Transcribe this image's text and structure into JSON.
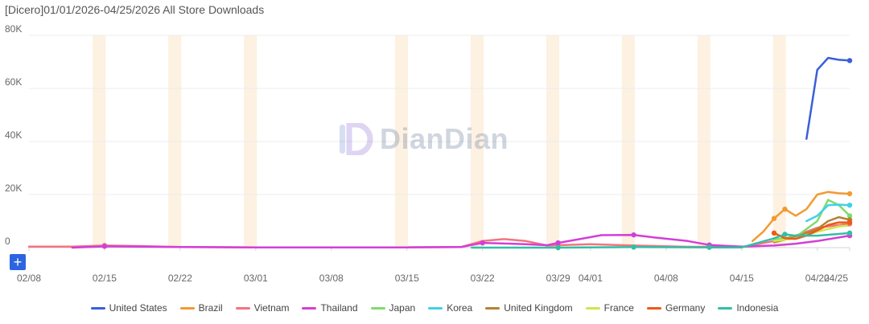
{
  "chart_data": {
    "type": "line",
    "title": "[Dicero]01/01/2026-04/25/2026 All Store Downloads",
    "y_ticks": [
      "0",
      "20K",
      "40K",
      "60K",
      "80K"
    ],
    "ylim": [
      0,
      80000
    ],
    "xlim": [
      "2026-02-08",
      "2026-04-25"
    ],
    "x_ticks": [
      {
        "date": "2026-02-08",
        "label": "02/08"
      },
      {
        "date": "2026-02-15",
        "label": "02/15"
      },
      {
        "date": "2026-02-22",
        "label": "02/22"
      },
      {
        "date": "2026-03-01",
        "label": "03/01"
      },
      {
        "date": "2026-03-08",
        "label": "03/08"
      },
      {
        "date": "2026-03-15",
        "label": "03/15"
      },
      {
        "date": "2026-03-22",
        "label": "03/22"
      },
      {
        "date": "2026-03-29",
        "label": "03/29"
      },
      {
        "date": "2026-04-01",
        "label": "04/01"
      },
      {
        "date": "2026-04-08",
        "label": "04/08"
      },
      {
        "date": "2026-04-15",
        "label": "04/15"
      },
      {
        "date": "2026-04-22",
        "label": "04/22"
      },
      {
        "date": "2026-04-25",
        "label": "04/25"
      }
    ],
    "weekend_bands": [
      {
        "start": "2026-02-14",
        "end": "2026-02-15"
      },
      {
        "start": "2026-02-21",
        "end": "2026-02-22"
      },
      {
        "start": "2026-02-28",
        "end": "2026-03-01"
      },
      {
        "start": "2026-03-14",
        "end": "2026-03-15"
      },
      {
        "start": "2026-03-21",
        "end": "2026-03-22"
      },
      {
        "start": "2026-03-28",
        "end": "2026-03-29"
      },
      {
        "start": "2026-04-04",
        "end": "2026-04-05"
      },
      {
        "start": "2026-04-11",
        "end": "2026-04-12"
      },
      {
        "start": "2026-04-18",
        "end": "2026-04-19"
      }
    ],
    "legend_position": "bottom",
    "grid": true,
    "series": [
      {
        "name": "United States",
        "color": "#3a5fd9",
        "points": [
          [
            "2026-04-21",
            41000
          ],
          [
            "2026-04-22",
            67000
          ],
          [
            "2026-04-23",
            71500
          ],
          [
            "2026-04-24",
            70800
          ],
          [
            "2026-04-25",
            70500
          ]
        ],
        "markers": [
          "2026-04-25"
        ]
      },
      {
        "name": "Brazil",
        "color": "#f39a31",
        "points": [
          [
            "2026-04-16",
            2500
          ],
          [
            "2026-04-17",
            6000
          ],
          [
            "2026-04-18",
            11000
          ],
          [
            "2026-04-19",
            14500
          ],
          [
            "2026-04-20",
            12000
          ],
          [
            "2026-04-21",
            14500
          ],
          [
            "2026-04-22",
            20000
          ],
          [
            "2026-04-23",
            21000
          ],
          [
            "2026-04-24",
            20500
          ],
          [
            "2026-04-25",
            20300
          ]
        ],
        "markers": [
          "2026-04-18",
          "2026-04-19",
          "2026-04-25"
        ]
      },
      {
        "name": "Vietnam",
        "color": "#f3747f",
        "points": [
          [
            "2026-02-08",
            400
          ],
          [
            "2026-02-12",
            400
          ],
          [
            "2026-02-15",
            800
          ],
          [
            "2026-02-18",
            600
          ],
          [
            "2026-02-22",
            200
          ],
          [
            "2026-03-01",
            100
          ],
          [
            "2026-03-15",
            100
          ],
          [
            "2026-03-20",
            200
          ],
          [
            "2026-03-22",
            2500
          ],
          [
            "2026-03-24",
            3200
          ],
          [
            "2026-03-26",
            2500
          ],
          [
            "2026-03-28",
            800
          ],
          [
            "2026-04-01",
            1300
          ],
          [
            "2026-04-05",
            800
          ],
          [
            "2026-04-10",
            300
          ],
          [
            "2026-04-15",
            200
          ],
          [
            "2026-04-18",
            2500
          ],
          [
            "2026-04-20",
            4500
          ],
          [
            "2026-04-22",
            7500
          ],
          [
            "2026-04-25",
            9000
          ]
        ],
        "markers": [
          "2026-02-15",
          "2026-04-25"
        ]
      },
      {
        "name": "Thailand",
        "color": "#d33fd6",
        "points": [
          [
            "2026-02-12",
            0
          ],
          [
            "2026-02-15",
            500
          ],
          [
            "2026-02-22",
            200
          ],
          [
            "2026-03-01",
            100
          ],
          [
            "2026-03-15",
            100
          ],
          [
            "2026-03-20",
            200
          ],
          [
            "2026-03-22",
            1800
          ],
          [
            "2026-03-26",
            1300
          ],
          [
            "2026-03-28",
            900
          ],
          [
            "2026-03-29",
            1800
          ],
          [
            "2026-03-31",
            3200
          ],
          [
            "2026-04-02",
            4700
          ],
          [
            "2026-04-05",
            4800
          ],
          [
            "2026-04-07",
            3800
          ],
          [
            "2026-04-10",
            2500
          ],
          [
            "2026-04-12",
            1000
          ],
          [
            "2026-04-15",
            400
          ],
          [
            "2026-04-18",
            800
          ],
          [
            "2026-04-20",
            1500
          ],
          [
            "2026-04-22",
            2500
          ],
          [
            "2026-04-25",
            4500
          ]
        ],
        "markers": [
          "2026-02-15",
          "2026-03-22",
          "2026-03-29",
          "2026-04-05",
          "2026-04-12",
          "2026-04-25"
        ]
      },
      {
        "name": "Japan",
        "color": "#7fdc6c",
        "points": [
          [
            "2026-04-18",
            3000
          ],
          [
            "2026-04-20",
            4000
          ],
          [
            "2026-04-22",
            10000
          ],
          [
            "2026-04-23",
            18000
          ],
          [
            "2026-04-24",
            16000
          ],
          [
            "2026-04-25",
            12000
          ]
        ],
        "markers": [
          "2026-04-25"
        ]
      },
      {
        "name": "Korea",
        "color": "#41d1e5",
        "points": [
          [
            "2026-04-21",
            10000
          ],
          [
            "2026-04-22",
            12000
          ],
          [
            "2026-04-23",
            16000
          ],
          [
            "2026-04-24",
            16200
          ],
          [
            "2026-04-25",
            16000
          ]
        ],
        "markers": [
          "2026-04-25"
        ]
      },
      {
        "name": "United Kingdom",
        "color": "#b48234",
        "points": [
          [
            "2026-04-18",
            2000
          ],
          [
            "2026-04-20",
            4000
          ],
          [
            "2026-04-22",
            7000
          ],
          [
            "2026-04-23",
            10000
          ],
          [
            "2026-04-24",
            11500
          ],
          [
            "2026-04-25",
            10500
          ]
        ],
        "markers": [
          "2026-04-25"
        ]
      },
      {
        "name": "France",
        "color": "#cde848",
        "points": [
          [
            "2026-04-18",
            2500
          ],
          [
            "2026-04-20",
            3500
          ],
          [
            "2026-04-22",
            6000
          ],
          [
            "2026-04-24",
            8000
          ],
          [
            "2026-04-25",
            8300
          ]
        ],
        "markers": []
      },
      {
        "name": "Germany",
        "color": "#ec5a1a",
        "points": [
          [
            "2026-04-18",
            5500
          ],
          [
            "2026-04-19",
            3500
          ],
          [
            "2026-04-20",
            3300
          ],
          [
            "2026-04-21",
            4500
          ],
          [
            "2026-04-22",
            6500
          ],
          [
            "2026-04-23",
            8500
          ],
          [
            "2026-04-24",
            9500
          ],
          [
            "2026-04-25",
            9500
          ]
        ],
        "markers": [
          "2026-04-18",
          "2026-04-25"
        ]
      },
      {
        "name": "Indonesia",
        "color": "#32bfa4",
        "points": [
          [
            "2026-03-21",
            0
          ],
          [
            "2026-03-29",
            0
          ],
          [
            "2026-04-05",
            200
          ],
          [
            "2026-04-12",
            100
          ],
          [
            "2026-04-15",
            100
          ],
          [
            "2026-04-18",
            3500
          ],
          [
            "2026-04-19",
            5000
          ],
          [
            "2026-04-20",
            4500
          ],
          [
            "2026-04-22",
            4500
          ],
          [
            "2026-04-25",
            5500
          ]
        ],
        "markers": [
          "2026-03-22",
          "2026-03-29",
          "2026-04-05",
          "2026-04-12",
          "2026-04-19",
          "2026-04-25"
        ]
      }
    ]
  },
  "watermark": {
    "text": "DianDian"
  },
  "add_button": {
    "label": "+"
  }
}
